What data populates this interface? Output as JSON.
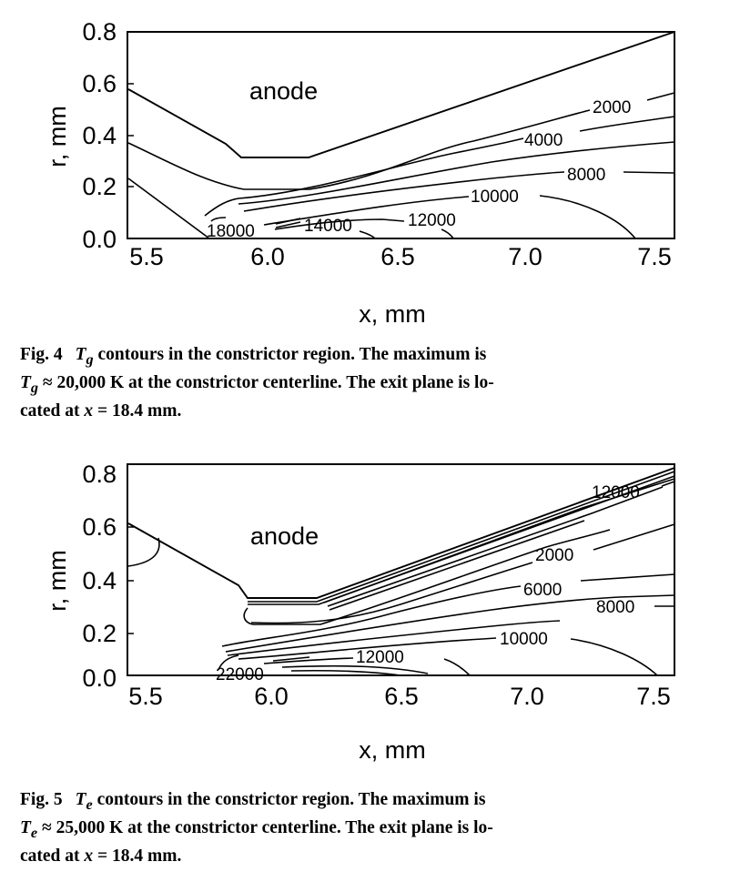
{
  "figures": [
    {
      "id": "fig4",
      "caption": {
        "number": "Fig. 4",
        "symbol": "T",
        "sub": "g",
        "lines": [
          " contours in the constrictor region. The maximum is",
          " ≈ 20,000 K at the constrictor centerline. The exit plane is lo-",
          "cated at ",
          " = 18.4 mm."
        ]
      },
      "region_label": "anode",
      "chart_data": {
        "type": "contour",
        "title": "",
        "xlabel": "x, mm",
        "ylabel": "r, mm",
        "xlim": [
          5.5,
          7.55
        ],
        "ylim": [
          0.0,
          0.8
        ],
        "xticks": [
          "5.5",
          "6.0",
          "6.5",
          "7.0",
          "7.5"
        ],
        "yticks": [
          "0.0",
          "0.2",
          "0.4",
          "0.6",
          "0.8"
        ],
        "contour_labels": [
          "2000",
          "4000",
          "8000",
          "10000",
          "12000",
          "14000",
          "18000"
        ],
        "anode_boundary": {
          "x": [
            5.5,
            5.78,
            5.92,
            6.17,
            7.55
          ],
          "r": [
            0.58,
            0.43,
            0.32,
            0.32,
            0.8
          ]
        },
        "max_value": "20,000 K"
      }
    },
    {
      "id": "fig5",
      "caption": {
        "number": "Fig. 5",
        "symbol": "T",
        "sub": "e",
        "lines": [
          " contours in the constrictor region. The maximum is",
          " ≈ 25,000 K at the constrictor centerline. The exit plane is lo-",
          "cated at ",
          " = 18.4 mm."
        ]
      },
      "region_label": "anode",
      "chart_data": {
        "type": "contour",
        "title": "",
        "xlabel": "x, mm",
        "ylabel": "r, mm",
        "xlim": [
          5.5,
          7.55
        ],
        "ylim": [
          0.0,
          0.8
        ],
        "xticks": [
          "5.5",
          "6.0",
          "6.5",
          "7.0",
          "7.5"
        ],
        "yticks": [
          "0.0",
          "0.2",
          "0.4",
          "0.6",
          "0.8"
        ],
        "contour_labels": [
          "12000",
          "2000",
          "6000",
          "8000",
          "10000",
          "12000",
          "22000"
        ],
        "anode_boundary": {
          "x": [
            5.5,
            5.82,
            5.92,
            6.17,
            7.55
          ],
          "r": [
            0.6,
            0.4,
            0.31,
            0.31,
            0.8
          ]
        },
        "max_value": "25,000 K"
      }
    }
  ]
}
